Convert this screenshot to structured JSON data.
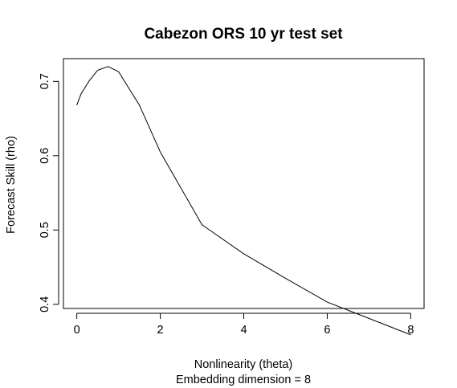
{
  "chart_data": {
    "type": "line",
    "title": "Cabezon ORS 10 yr test set",
    "xlabel": "Nonlinearity (theta)",
    "xlabel_sub": "Embedding dimension = 8",
    "ylabel": "Forecast Skill (rho)",
    "xlim": [
      -0.32,
      8.32
    ],
    "ylim": [
      0.3944,
      0.7306
    ],
    "xticks": [
      0,
      2,
      4,
      6,
      8
    ],
    "yticks": [
      0.4,
      0.5,
      0.6,
      0.7
    ],
    "xtick_labels": [
      "0",
      "2",
      "4",
      "6",
      "8"
    ],
    "ytick_labels": [
      "0.4",
      "0.5",
      "0.6",
      "0.7"
    ],
    "grid": false,
    "legend": "none",
    "line_color": "#000000",
    "series": [
      {
        "x": [
          0,
          0.1,
          0.3,
          0.5,
          0.75,
          1,
          1.5,
          2,
          3,
          4,
          5,
          6,
          7,
          8
        ],
        "y": [
          0.668,
          0.683,
          0.701,
          0.715,
          0.72,
          0.713,
          0.668,
          0.605,
          0.507,
          0.468,
          0.435,
          0.403,
          0.381,
          0.359
        ]
      }
    ]
  }
}
